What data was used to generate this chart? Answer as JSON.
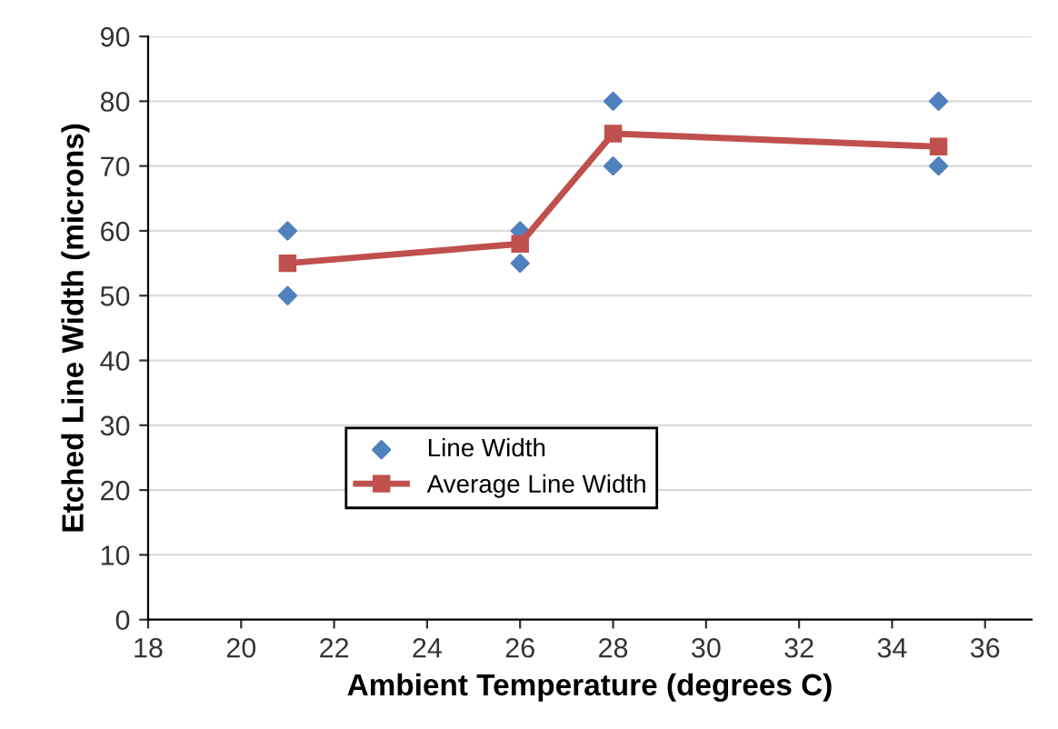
{
  "chart_data": {
    "type": "scatter",
    "xlabel": "Ambient Temperature (degrees C)",
    "ylabel": "Etched Line Width (microns)",
    "xlim": [
      18,
      37
    ],
    "xticks": [
      18,
      20,
      22,
      24,
      26,
      28,
      30,
      32,
      34,
      36
    ],
    "ylim": [
      0,
      90
    ],
    "yticks": [
      0,
      10,
      20,
      30,
      40,
      50,
      60,
      70,
      80,
      90
    ],
    "grid": "y",
    "legend": "bottom",
    "series": [
      {
        "name": "Line Width",
        "marker": "diamond",
        "color": "#4f81bd",
        "x": [
          21,
          21,
          26,
          26,
          28,
          28,
          35,
          35
        ],
        "values": [
          60,
          50,
          60,
          55,
          80,
          70,
          80,
          70
        ]
      },
      {
        "name": "Average Line Width",
        "type": "line",
        "marker": "square",
        "line_style": "solid",
        "color": "#c0504d",
        "x": [
          21,
          26,
          28,
          35
        ],
        "values": [
          55,
          58,
          75,
          73
        ]
      }
    ]
  }
}
